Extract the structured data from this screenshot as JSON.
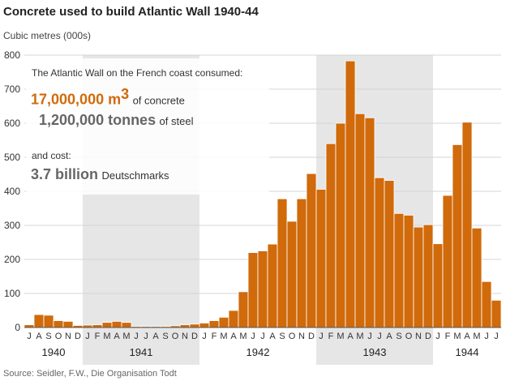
{
  "title": "Concrete used to build Atlantic Wall 1940-44",
  "unit_label": "Cubic metres (000s)",
  "source": "Source: Seidler, F.W., Die Organisation Todt",
  "colors": {
    "bar": "#d06a0a",
    "band": "#e6e6e6",
    "grey_text": "#666666"
  },
  "info": {
    "intro": "The Atlantic Wall on the French coast consumed:",
    "concrete_amount": "17,000,000 m",
    "concrete_sup": "3",
    "concrete_suffix": "of concrete",
    "steel_amount": "1,200,000 tonnes",
    "steel_suffix": "of steel",
    "cost_intro": "and cost:",
    "cost_amount": "3.7 billion",
    "cost_suffix": "Deutschmarks"
  },
  "chart_data": {
    "type": "bar",
    "title": "Concrete used to build Atlantic Wall 1940-44",
    "ylabel": "Cubic metres (000s)",
    "ylim": [
      0,
      800
    ],
    "yticks": [
      0,
      100,
      200,
      300,
      400,
      500,
      600,
      700,
      800
    ],
    "months": [
      "J",
      "A",
      "S",
      "O",
      "N",
      "D",
      "J",
      "F",
      "M",
      "A",
      "M",
      "J",
      "J",
      "A",
      "S",
      "O",
      "N",
      "D",
      "J",
      "F",
      "M",
      "A",
      "M",
      "J",
      "J",
      "A",
      "S",
      "O",
      "N",
      "D",
      "J",
      "F",
      "M",
      "A",
      "M",
      "J",
      "J",
      "A",
      "S",
      "O",
      "N",
      "D",
      "J",
      "F",
      "M",
      "A",
      "M",
      "J",
      "J"
    ],
    "years": [
      {
        "label": "1940",
        "start": 0,
        "end": 6,
        "shaded": false
      },
      {
        "label": "1941",
        "start": 6,
        "end": 18,
        "shaded": true
      },
      {
        "label": "1942",
        "start": 18,
        "end": 30,
        "shaded": false
      },
      {
        "label": "1943",
        "start": 30,
        "end": 42,
        "shaded": true
      },
      {
        "label": "1944",
        "start": 42,
        "end": 49,
        "shaded": false
      }
    ],
    "values": [
      8,
      38,
      36,
      20,
      18,
      6,
      7,
      8,
      15,
      18,
      15,
      3,
      3,
      3,
      3,
      5,
      8,
      10,
      13,
      20,
      30,
      50,
      105,
      220,
      225,
      245,
      378,
      312,
      378,
      452,
      406,
      540,
      600,
      783,
      628,
      616,
      440,
      432,
      335,
      330,
      295,
      302,
      246,
      388,
      537,
      603,
      292,
      135,
      80
    ]
  }
}
